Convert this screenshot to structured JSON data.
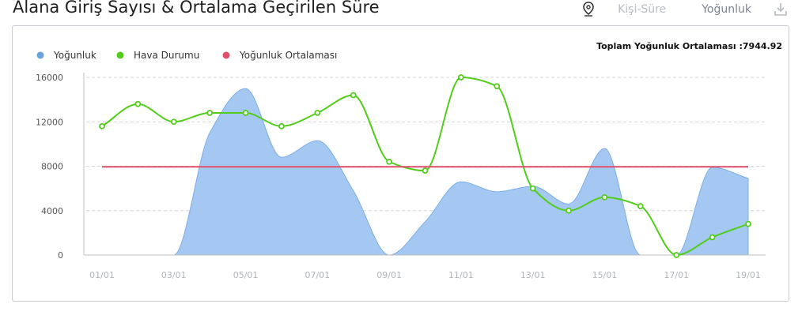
{
  "header": {
    "title": "Alana Giriş Sayısı & Ortalama Geçirilen Süre",
    "toggle_person_time": "Kişi-Süre",
    "toggle_density": "Yoğunluk"
  },
  "chart_data": {
    "type": "area",
    "total_label": "Toplam Yoğunluk Ortalaması :7944.92",
    "legend": [
      {
        "name": "Yoğunluk",
        "color": "#6aa2e0"
      },
      {
        "name": "Hava Durumu",
        "color": "#52cc1b"
      },
      {
        "name": "Yoğunluk Ortalaması",
        "color": "#e0506a"
      }
    ],
    "x_tick_labels": [
      "01/01",
      "03/01",
      "05/01",
      "07/01",
      "09/01",
      "11/01",
      "13/01",
      "15/01",
      "17/01",
      "19/01"
    ],
    "y_ticks": [
      0,
      4000,
      8000,
      12000,
      16000
    ],
    "ylim": [
      0,
      16000
    ],
    "x": [
      1,
      2,
      3,
      4,
      5,
      6,
      7,
      8,
      9,
      10,
      11,
      12,
      13,
      14,
      15,
      16,
      17,
      18,
      19
    ],
    "series": [
      {
        "name": "Yoğunluk",
        "type": "area",
        "color": "#a4c8f1",
        "values": [
          0,
          0,
          0,
          11000,
          15000,
          8800,
          10300,
          5800,
          0,
          3000,
          6600,
          5700,
          6200,
          4600,
          9600,
          0,
          0,
          7900,
          6900
        ]
      },
      {
        "name": "Hava Durumu",
        "type": "line",
        "color": "#52cc1b",
        "values": [
          11600,
          13600,
          12000,
          12800,
          12800,
          11600,
          12800,
          14400,
          8400,
          7600,
          16000,
          15200,
          6000,
          4000,
          5200,
          4400,
          0,
          1600,
          2800
        ]
      },
      {
        "name": "Yoğunluk Ortalaması",
        "type": "line",
        "color": "#e0506a",
        "values": [
          7944.92,
          7944.92,
          7944.92,
          7944.92,
          7944.92,
          7944.92,
          7944.92,
          7944.92,
          7944.92,
          7944.92,
          7944.92,
          7944.92,
          7944.92,
          7944.92,
          7944.92,
          7944.92,
          7944.92,
          7944.92,
          7944.92
        ]
      }
    ],
    "grid": true,
    "legend_position": "top-left"
  }
}
